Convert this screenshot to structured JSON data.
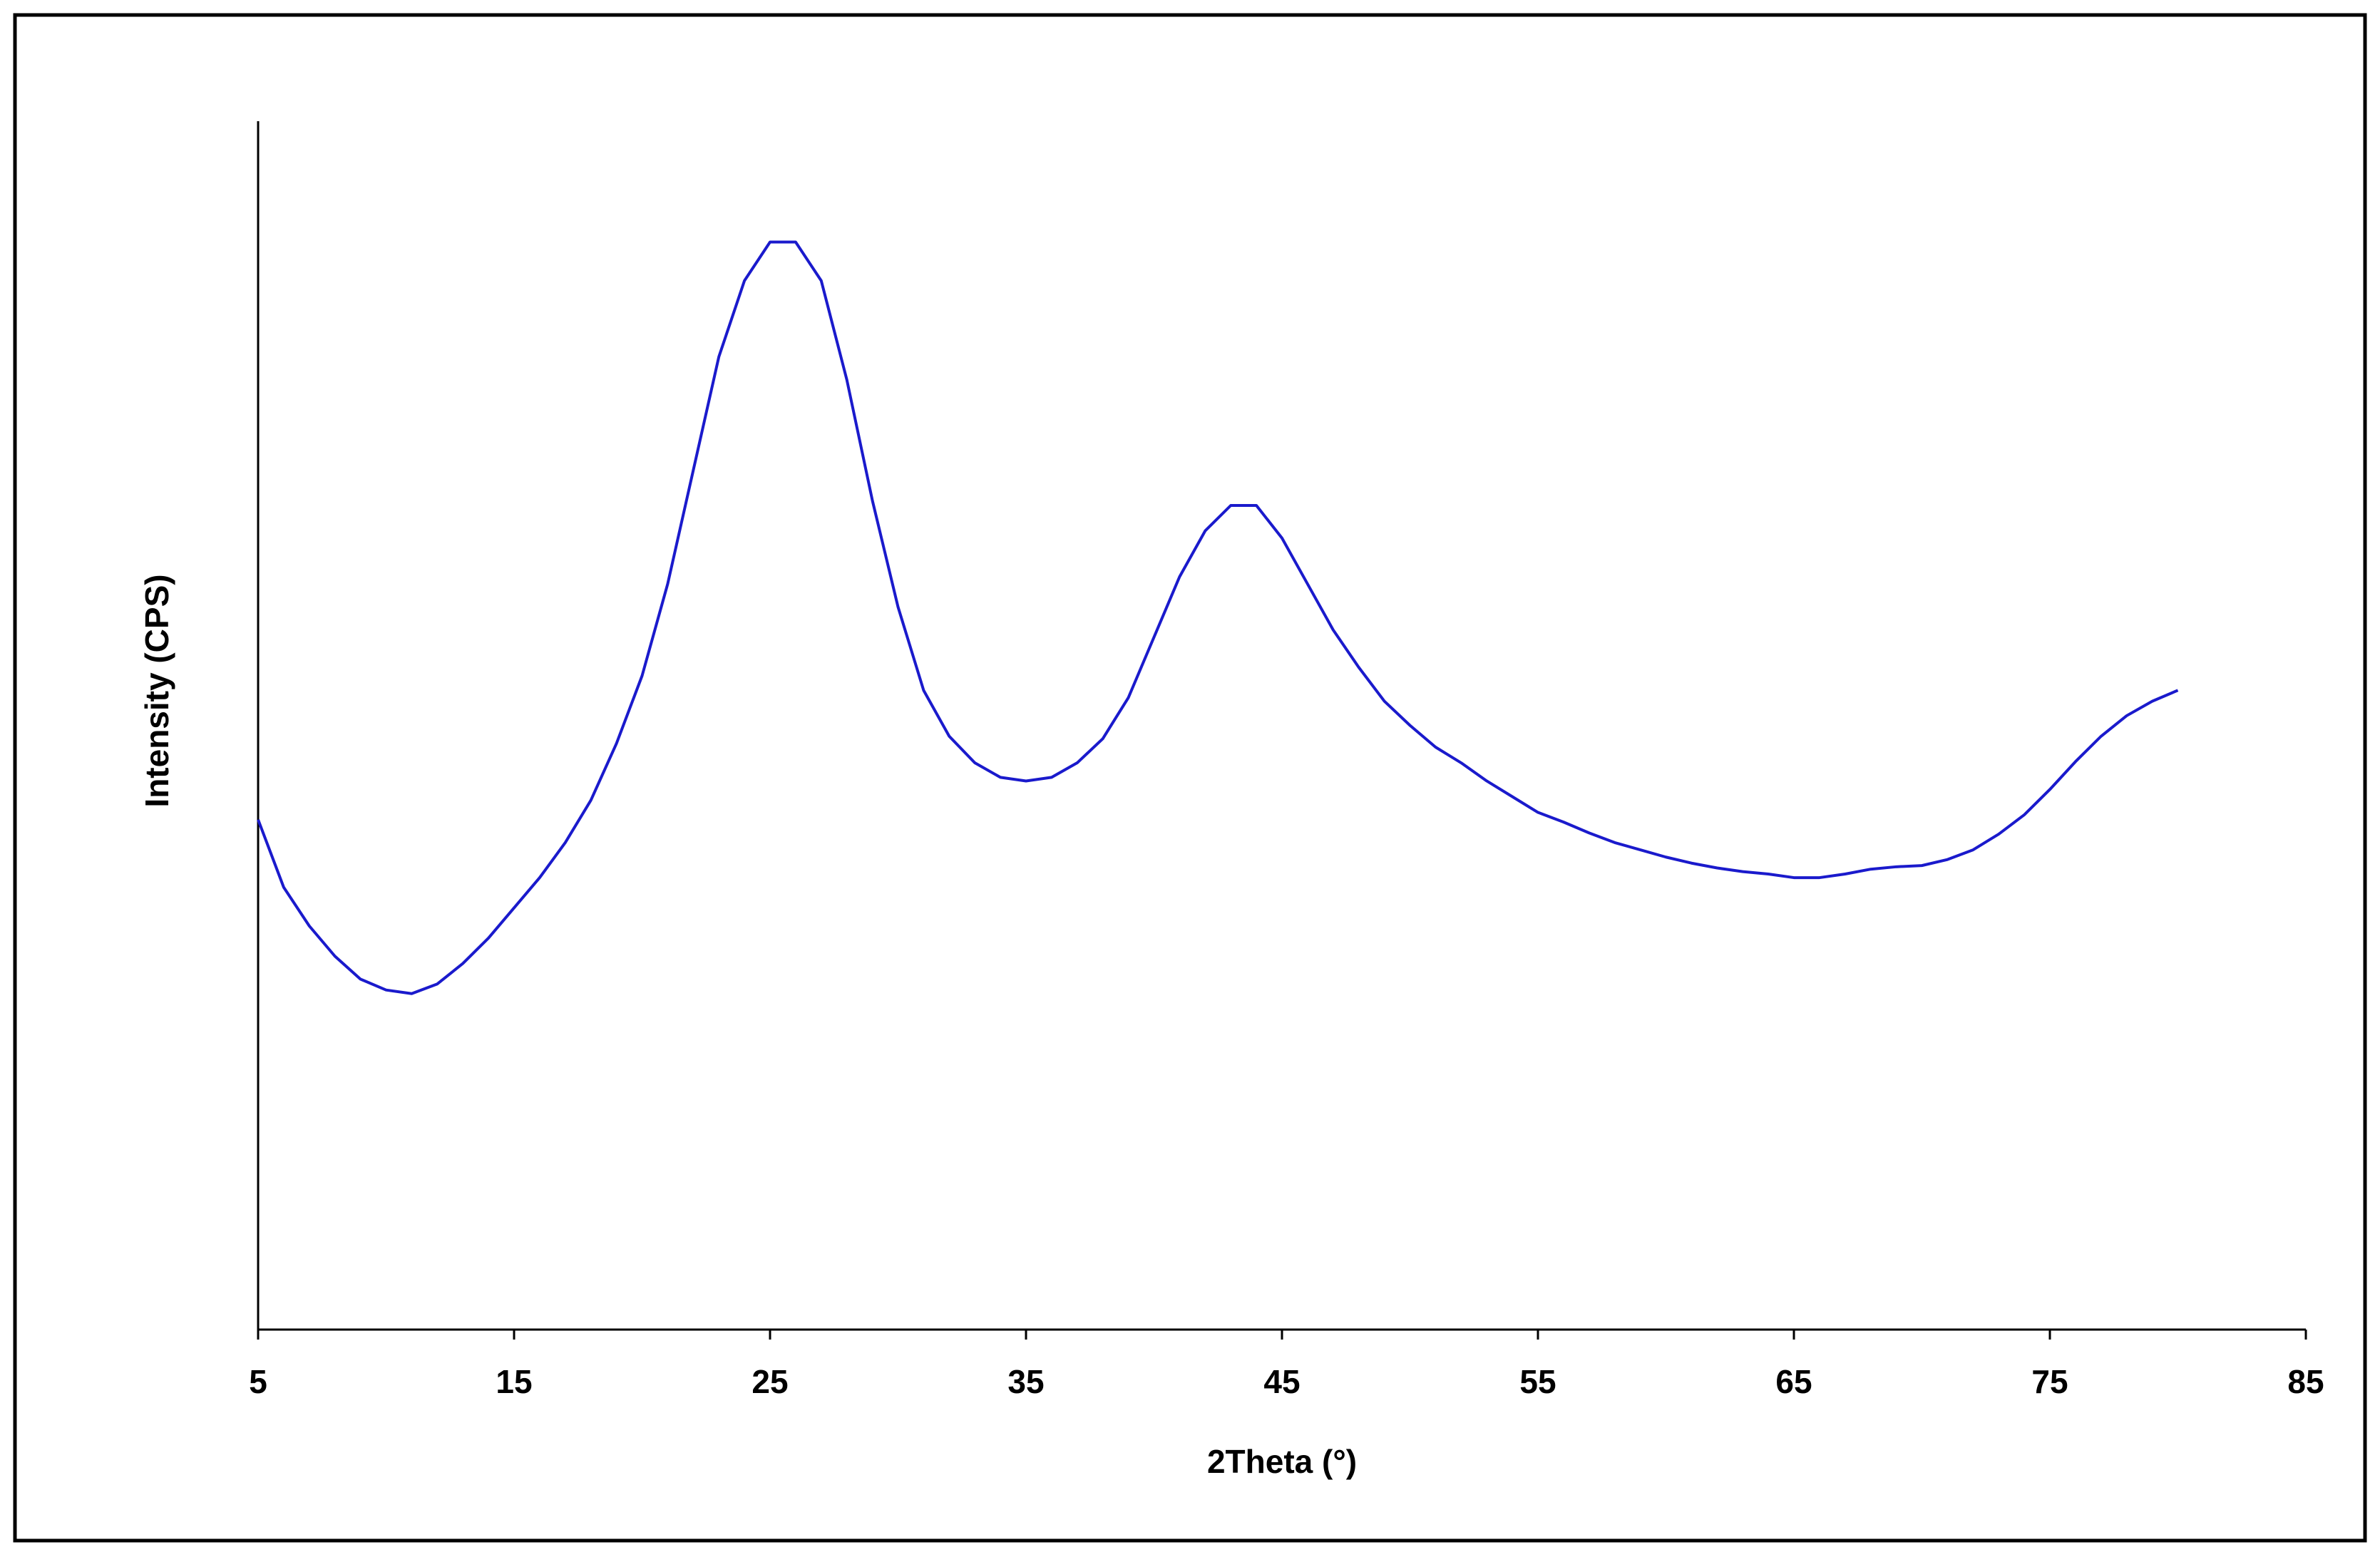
{
  "chart_data": {
    "type": "line",
    "x_label": "2Theta (°)",
    "y_label": "Intensity (CPS)",
    "x": [
      5,
      6,
      7,
      8,
      9,
      10,
      11,
      12,
      13,
      14,
      15,
      16,
      17,
      18,
      19,
      20,
      21,
      22,
      23,
      24,
      25,
      26,
      27,
      28,
      29,
      30,
      31,
      32,
      33,
      34,
      35,
      36,
      37,
      38,
      39,
      40,
      41,
      42,
      43,
      44,
      45,
      46,
      47,
      48,
      49,
      50,
      51,
      52,
      53,
      54,
      55,
      56,
      57,
      58,
      59,
      60,
      61,
      62,
      63,
      64,
      65,
      66,
      67,
      68,
      69,
      70,
      71,
      72,
      73,
      74,
      75,
      76,
      77,
      78,
      79,
      80
    ],
    "series": [
      {
        "name": "Intensity",
        "color": "#1a1acc",
        "values": [
          42.2,
          36.6,
          33.4,
          30.9,
          29.0,
          28.1,
          27.8,
          28.6,
          30.3,
          32.4,
          34.9,
          37.4,
          40.3,
          43.8,
          48.5,
          54.1,
          61.7,
          71.1,
          80.5,
          86.8,
          90.0,
          90.0,
          86.8,
          78.6,
          68.6,
          59.8,
          52.9,
          49.1,
          46.9,
          45.7,
          45.4,
          45.7,
          46.9,
          48.9,
          52.3,
          57.3,
          62.3,
          66.1,
          68.2,
          68.2,
          65.5,
          61.7,
          57.9,
          54.8,
          52.0,
          50.0,
          48.2,
          46.9,
          45.4,
          44.1,
          42.8,
          42.0,
          41.1,
          40.3,
          39.7,
          39.1,
          38.6,
          38.2,
          37.9,
          37.7,
          37.4,
          37.4,
          37.7,
          38.1,
          38.3,
          38.4,
          38.9,
          39.7,
          41.0,
          42.6,
          44.7,
          47.0,
          49.1,
          50.8,
          52.0,
          52.9
        ]
      }
    ],
    "xlim": [
      5,
      85
    ],
    "xticks": [
      5,
      15,
      25,
      35,
      45,
      55,
      65,
      75,
      85
    ],
    "ylim": [
      0,
      100
    ],
    "grid": false
  }
}
